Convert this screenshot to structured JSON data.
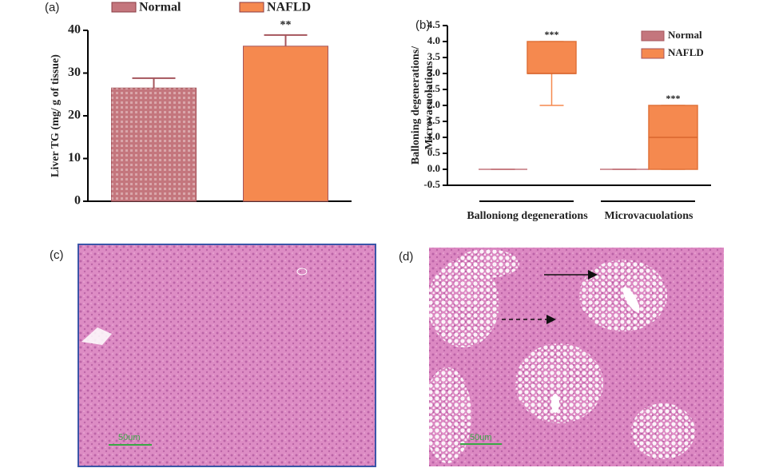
{
  "chart_data": [
    {
      "type": "bar",
      "panel_label": "(a)",
      "ylabel": "Liver TG (mg/ g of tissue)",
      "ylim": [
        0,
        40
      ],
      "yticks": [
        0,
        10,
        20,
        30,
        40
      ],
      "grid": false,
      "series": [
        {
          "name": "Normal",
          "color": "#c4767d",
          "values": [
            26.5
          ],
          "errors": [
            2.3
          ]
        },
        {
          "name": "NAFLD",
          "color": "#f5894f",
          "values": [
            36.3
          ],
          "errors": [
            2.6
          ],
          "annotation": "**"
        }
      ]
    },
    {
      "type": "box",
      "panel_label": "(b)",
      "ylabel": [
        "Balloning degenerations/",
        "Microvacuolations"
      ],
      "categories": [
        "Balloniong degenerations",
        "Microvacuolations"
      ],
      "ylim": [
        -0.5,
        4.5
      ],
      "yticks": [
        -0.5,
        {
          "value": 0,
          "label": "0.0"
        },
        0.5,
        {
          "value": 1,
          "label": "1.0"
        },
        1.5,
        {
          "value": 2,
          "label": "2.0"
        },
        2.5,
        {
          "value": 3,
          "label": "3.0"
        },
        3.5,
        {
          "value": 4,
          "label": "4.0"
        },
        4.5
      ],
      "grid": false,
      "series": [
        {
          "name": "Normal",
          "color": "#c4767d",
          "min": [
            0,
            0
          ],
          "q1": [
            0,
            0
          ],
          "median": [
            0,
            0
          ],
          "q3": [
            0,
            0
          ],
          "max": [
            0,
            0
          ]
        },
        {
          "name": "NAFLD",
          "color": "#f5894f",
          "min": [
            2,
            0
          ],
          "q1": [
            3,
            0
          ],
          "median": [
            3,
            1
          ],
          "q3": [
            4,
            2
          ],
          "max": [
            4,
            2
          ],
          "annotations": [
            "***",
            "***"
          ]
        }
      ]
    }
  ],
  "images": [
    {
      "panel_label": "(c)",
      "scale_bar": "50um"
    },
    {
      "panel_label": "(d)",
      "scale_bar": "50um"
    }
  ]
}
